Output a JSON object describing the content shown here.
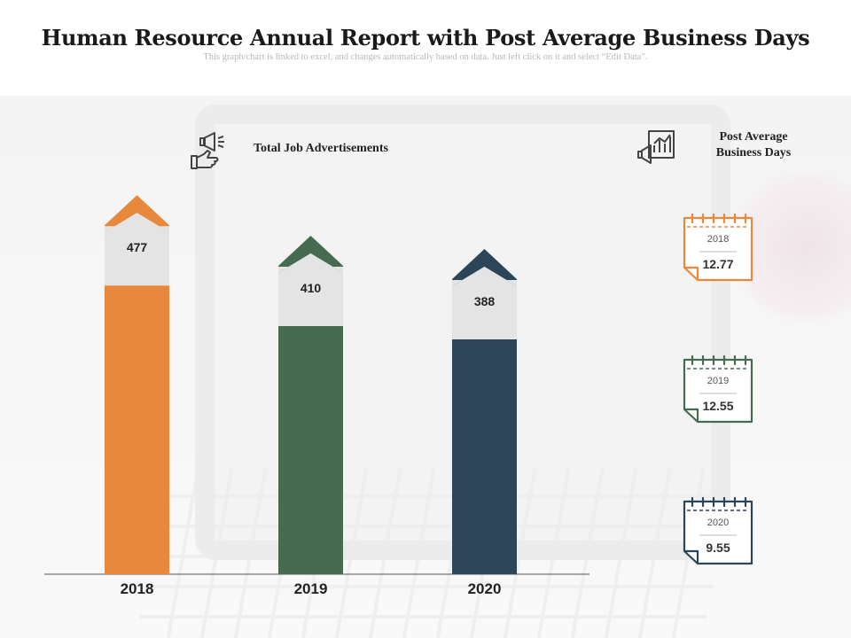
{
  "header": {
    "title": "Human Resource Annual Report with Post Average Business Days",
    "subtitle": "This graph/chart is linked to excel, and changes automatically based on data. Just left click on it and select “Edit Data”."
  },
  "legend": {
    "left_label": "Total Job Advertisements",
    "right_label_line1": "Post Average",
    "right_label_line2": "Business Days"
  },
  "colors": {
    "orange": "#E8883C",
    "green": "#476B50",
    "navy": "#2D4559",
    "label_box": "#E5E4E4"
  },
  "icons": [
    "megaphone-hand-icon",
    "megaphone-chart-icon"
  ],
  "chart_data": [
    {
      "type": "bar",
      "categories": [
        "2018",
        "2019",
        "2020"
      ],
      "values": [
        477,
        410,
        388
      ],
      "series": [
        {
          "name": "Total Job Advertisements",
          "values": [
            477,
            410,
            388
          ]
        }
      ],
      "xlabel": "",
      "ylabel": "",
      "grid": false
    },
    {
      "type": "table",
      "categories": [
        "2018",
        "2019",
        "2020"
      ],
      "values": [
        12.77,
        12.55,
        9.55
      ],
      "series": [
        {
          "name": "Post Average Business Days",
          "values": [
            12.77,
            12.55,
            9.55
          ]
        }
      ]
    }
  ],
  "bars": [
    {
      "year": "2018",
      "value": "477",
      "color": "#E8883C"
    },
    {
      "year": "2019",
      "value": "410",
      "color": "#476B50"
    },
    {
      "year": "2020",
      "value": "388",
      "color": "#2D4559"
    }
  ],
  "calendars": [
    {
      "year": "2018",
      "value": "12.77",
      "color": "#E8883C"
    },
    {
      "year": "2019",
      "value": "12.55",
      "color": "#476B50"
    },
    {
      "year": "2020",
      "value": "9.55",
      "color": "#2D4559"
    }
  ]
}
